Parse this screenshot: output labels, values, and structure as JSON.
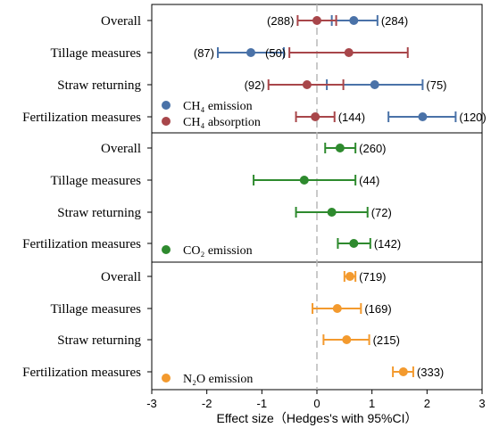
{
  "chart_data": {
    "type": "scatter",
    "subtype": "forest-plot",
    "xlabel": "Effect size（Hedges's with 95%CI）",
    "xlim": [
      -3,
      3
    ],
    "xticks": [
      "-3",
      "-2",
      "-1",
      "0",
      "1",
      "2",
      "3"
    ],
    "reference_line_x": 0,
    "colors": {
      "CH4_emission": "#4a72a8",
      "CH4_absorption": "#a8464a",
      "CO2_emission": "#2e8a2e",
      "N2O_emission": "#f39a2e"
    },
    "panels": [
      {
        "categories": [
          "Overall",
          "Tillage measures",
          "Straw returning",
          "Fertilization measures"
        ],
        "series": [
          {
            "name": "CH₄ emission",
            "color_key": "CH4_emission",
            "points": [
              {
                "category": "Overall",
                "mean": 0.67,
                "lower": 0.27,
                "upper": 1.1,
                "n": "(284)"
              },
              {
                "category": "Tillage measures",
                "mean": -1.2,
                "lower": -1.8,
                "upper": -0.6,
                "n": "(87)"
              },
              {
                "category": "Straw returning",
                "mean": 1.05,
                "lower": 0.18,
                "upper": 1.92,
                "n": "(75)"
              },
              {
                "category": "Fertilization measures",
                "mean": 1.92,
                "lower": 1.3,
                "upper": 2.52,
                "n": "(120)"
              }
            ]
          },
          {
            "name": "CH₄ absorption",
            "color_key": "CH4_absorption",
            "points": [
              {
                "category": "Overall",
                "mean": 0.0,
                "lower": -0.35,
                "upper": 0.35,
                "n": "(288)"
              },
              {
                "category": "Tillage measures",
                "mean": 0.58,
                "lower": -0.5,
                "upper": 1.65,
                "n": "(50)"
              },
              {
                "category": "Straw returning",
                "mean": -0.18,
                "lower": -0.88,
                "upper": 0.48,
                "n": "(92)"
              },
              {
                "category": "Fertilization measures",
                "mean": -0.03,
                "lower": -0.38,
                "upper": 0.32,
                "n": "(144)"
              }
            ]
          }
        ]
      },
      {
        "categories": [
          "Overall",
          "Tillage measures",
          "Straw returning",
          "Fertilization measures"
        ],
        "series": [
          {
            "name": "CO₂ emission",
            "color_key": "CO2_emission",
            "points": [
              {
                "category": "Overall",
                "mean": 0.42,
                "lower": 0.15,
                "upper": 0.7,
                "n": "(260)"
              },
              {
                "category": "Tillage measures",
                "mean": -0.23,
                "lower": -1.15,
                "upper": 0.7,
                "n": "(44)"
              },
              {
                "category": "Straw returning",
                "mean": 0.27,
                "lower": -0.38,
                "upper": 0.92,
                "n": "(72)"
              },
              {
                "category": "Fertilization measures",
                "mean": 0.67,
                "lower": 0.38,
                "upper": 0.97,
                "n": "(142)"
              }
            ]
          }
        ]
      },
      {
        "categories": [
          "Overall",
          "Tillage measures",
          "Straw returning",
          "Fertilization measures"
        ],
        "series": [
          {
            "name": "N₂O emission",
            "color_key": "N2O_emission",
            "points": [
              {
                "category": "Overall",
                "mean": 0.6,
                "lower": 0.5,
                "upper": 0.7,
                "n": "(719)"
              },
              {
                "category": "Tillage measures",
                "mean": 0.37,
                "lower": -0.08,
                "upper": 0.8,
                "n": "(169)"
              },
              {
                "category": "Straw returning",
                "mean": 0.54,
                "lower": 0.12,
                "upper": 0.95,
                "n": "(215)"
              },
              {
                "category": "Fertilization measures",
                "mean": 1.57,
                "lower": 1.38,
                "upper": 1.75,
                "n": "(333)"
              }
            ]
          }
        ]
      }
    ]
  }
}
